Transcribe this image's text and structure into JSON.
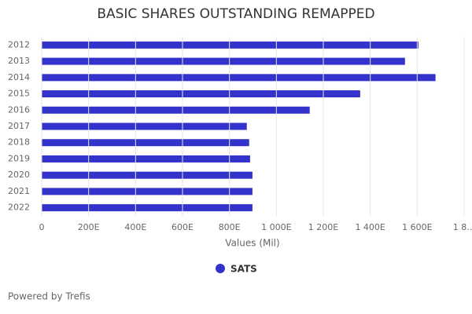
{
  "chart_data": {
    "type": "hbar",
    "title": "BASIC SHARES OUTSTANDING REMAPPED",
    "categories": [
      "2012",
      "2013",
      "2014",
      "2015",
      "2016",
      "2017",
      "2018",
      "2019",
      "2020",
      "2021",
      "2022"
    ],
    "series": [
      {
        "name": "SATS",
        "color": "#3333cc",
        "values": [
          1605,
          1548,
          1678,
          1357,
          1142,
          874,
          884,
          888,
          898,
          898,
          898
        ]
      }
    ],
    "xlim": [
      0,
      1800
    ],
    "xticks": [
      0,
      {
        "value": 200,
        "label": "200E"
      },
      {
        "value": 400,
        "label": "400E"
      },
      {
        "value": 600,
        "label": "600E"
      },
      {
        "value": 800,
        "label": "800E"
      },
      {
        "value": 1000,
        "label": "1 000E"
      },
      {
        "value": 1200,
        "label": "1 200E"
      },
      {
        "value": 1400,
        "label": "1 400E"
      },
      {
        "value": 1600,
        "label": "1 600E"
      },
      {
        "value": 1800,
        "label": "1 8…"
      }
    ],
    "xlabel": "Values (Mil)",
    "grid": true,
    "credit": "Powered by Trefis"
  }
}
